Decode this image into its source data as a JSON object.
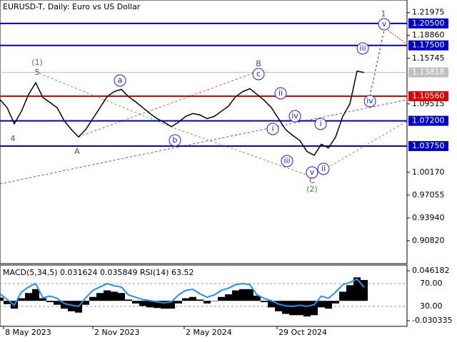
{
  "chart_data": [
    {
      "type": "line",
      "title": "EURUSD-T, Daily:  Euro vs US Dollar",
      "color": "#000000",
      "values": [
        1.101,
        1.09,
        1.068,
        1.085,
        1.108,
        1.124,
        1.104,
        1.097,
        1.09,
        1.072,
        1.06,
        1.05,
        1.06,
        1.075,
        1.09,
        1.105,
        1.112,
        1.115,
        1.105,
        1.098,
        1.09,
        1.082,
        1.075,
        1.07,
        1.064,
        1.07,
        1.078,
        1.082,
        1.08,
        1.075,
        1.078,
        1.085,
        1.092,
        1.105,
        1.112,
        1.116,
        1.108,
        1.1,
        1.09,
        1.075,
        1.06,
        1.052,
        1.045,
        1.03,
        1.025,
        1.04,
        1.035,
        1.05,
        1.078,
        1.095,
        1.14,
        1.138
      ],
      "xlim": [
        0,
        57
      ],
      "ylim": [
        0.877,
        1.237
      ],
      "yticks": [
        1.21975,
        {
          "value": 1.1886,
          "label": "1.18860"
        },
        1.15745,
        1.09515,
        {
          "value": 1.0017,
          "label": "1.00170"
        },
        0.97055,
        {
          "value": 0.9394,
          "label": "0.93940"
        },
        {
          "value": 0.9082,
          "label": "0.90820"
        }
      ],
      "xticks": [
        {
          "value": 0.5,
          "label": "8 May 2023"
        },
        {
          "value": 13,
          "label": "2 Nov 2023"
        },
        {
          "value": 25.8,
          "label": "2 May 2024"
        },
        {
          "value": 38.8,
          "label": "29 Oct 2024"
        }
      ],
      "levels": [
        {
          "value": 1.205,
          "label": "1.20500",
          "color": "#0000cd"
        },
        {
          "value": 1.175,
          "label": "1.17500",
          "color": "#0000cd"
        },
        {
          "value": 1.1056,
          "label": "1.10560",
          "color": "#e00000"
        },
        {
          "value": 1.072,
          "label": "1.07200",
          "color": "#0000cd"
        },
        {
          "value": 1.0375,
          "label": "1.03750",
          "color": "#0000cd"
        }
      ],
      "current_price": 1.13818,
      "annotations": [
        "(1)",
        "5",
        "4",
        "A",
        "B",
        "a",
        "b",
        "c",
        "i",
        "ii",
        "iii",
        "iv",
        "v",
        "C",
        "(2)",
        "i",
        "ii",
        "iii",
        "iv",
        "v",
        "1"
      ]
    },
    {
      "type": "macd",
      "label": "MACD(5,34,5) 0.031624 0.035849 RSI(14) 63.52",
      "color": "#000000",
      "values": [
        0.005,
        -0.005,
        -0.012,
        0.004,
        0.012,
        0.018,
        0.004,
        -0.002,
        -0.006,
        -0.012,
        -0.016,
        -0.018,
        -0.006,
        0.006,
        0.012,
        0.016,
        0.014,
        0.012,
        0.002,
        -0.004,
        -0.008,
        -0.01,
        -0.011,
        -0.012,
        -0.012,
        -0.004,
        0.004,
        0.006,
        0.002,
        -0.004,
        0.0,
        0.006,
        0.01,
        0.016,
        0.018,
        0.018,
        0.008,
        -0.002,
        -0.01,
        -0.016,
        -0.02,
        -0.022,
        -0.022,
        -0.024,
        -0.022,
        -0.01,
        -0.012,
        -0.004,
        0.014,
        0.024,
        0.036,
        0.032
      ],
      "rsi": {
        "color": "#1e90ff",
        "axis": "y2",
        "values": [
          52,
          42,
          32,
          55,
          64,
          70,
          45,
          48,
          44,
          35,
          32,
          30,
          45,
          58,
          64,
          70,
          66,
          64,
          50,
          46,
          42,
          40,
          38,
          36,
          38,
          50,
          58,
          60,
          52,
          46,
          50,
          58,
          62,
          68,
          70,
          68,
          50,
          44,
          40,
          34,
          31,
          30,
          32,
          30,
          33,
          48,
          44,
          55,
          68,
          72,
          78,
          63.52
        ]
      },
      "ylim": [
        -0.0391,
        0.0549
      ],
      "yticks": [
        0.046182,
        -0.030335
      ],
      "y2lim": [
        -5,
        102.5
      ],
      "y2ticks": [
        {
          "value": 70,
          "label": "70.00"
        },
        {
          "value": 30,
          "label": "30.00"
        }
      ]
    }
  ]
}
